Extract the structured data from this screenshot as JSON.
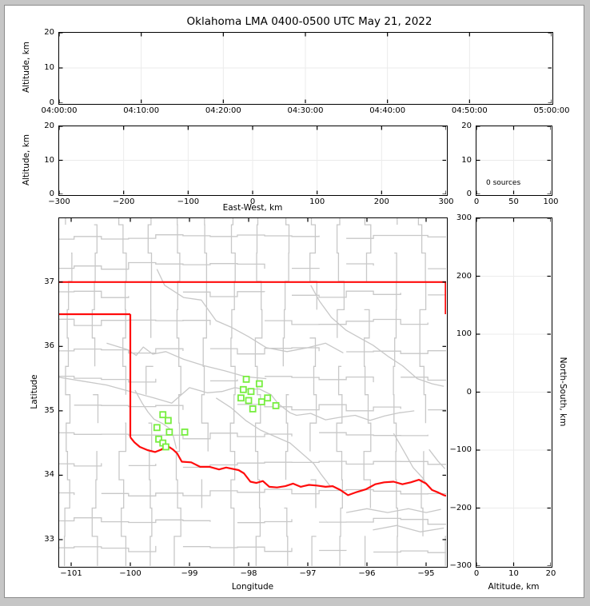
{
  "page": {
    "title": "Oklahoma LMA 0400-0500 UTC May 21, 2022"
  },
  "colors": {
    "figure_background": "#ffffff",
    "window_frame": "#c6c6c6",
    "figure_border": "#8c8c8c",
    "spine": "#000000",
    "grid": "#ebebeb",
    "county": "#c8c8c8",
    "river": "#c8c8c8",
    "state_border": "#ff0c0c",
    "station": "#77ee3f",
    "text": "#000000"
  },
  "chart_data": [
    {
      "id": "time_height",
      "type": "scatter",
      "description": "Altitude vs time panel, no sources plotted",
      "xlabel": "",
      "ylabel": "Altitude, km",
      "xlim": [
        0,
        3600
      ],
      "xticks": [
        {
          "v": 0,
          "t": "04:00:00"
        },
        {
          "v": 600,
          "t": "04:10:00"
        },
        {
          "v": 1200,
          "t": "04:20:00"
        },
        {
          "v": 1800,
          "t": "04:30:00"
        },
        {
          "v": 2400,
          "t": "04:40:00"
        },
        {
          "v": 3000,
          "t": "04:50:00"
        },
        {
          "v": 3600,
          "t": "05:00:00"
        }
      ],
      "ylim": [
        0,
        20
      ],
      "yticks": [
        {
          "v": 0,
          "t": "0"
        },
        {
          "v": 10,
          "t": "10"
        },
        {
          "v": 20,
          "t": "20"
        }
      ],
      "grid": true,
      "points": []
    },
    {
      "id": "ew_height",
      "type": "scatter",
      "description": "Altitude vs East-West distance panel, no sources plotted",
      "xlabel": "East-West, km",
      "ylabel": "Altitude, km",
      "xlim": [
        -300,
        300
      ],
      "xticks": [
        {
          "v": -300,
          "t": "−300"
        },
        {
          "v": -200,
          "t": "−200"
        },
        {
          "v": -100,
          "t": "−100"
        },
        {
          "v": 0,
          "t": "0"
        },
        {
          "v": 100,
          "t": "100"
        },
        {
          "v": 200,
          "t": "200"
        },
        {
          "v": 300,
          "t": "300"
        }
      ],
      "ylim": [
        0,
        20
      ],
      "yticks": [
        {
          "v": 0,
          "t": "0"
        },
        {
          "v": 10,
          "t": "10"
        },
        {
          "v": 20,
          "t": "20"
        }
      ],
      "grid": true,
      "points": []
    },
    {
      "id": "source_histogram",
      "type": "line",
      "description": "Source-count histogram panel",
      "annotation": "0 sources",
      "xlabel": "",
      "ylabel": "",
      "xlim": [
        0,
        100
      ],
      "xticks": [
        {
          "v": 0,
          "t": "0"
        },
        {
          "v": 50,
          "t": "50"
        },
        {
          "v": 100,
          "t": "100"
        }
      ],
      "ylim": [
        0,
        20
      ],
      "yticks": [
        {
          "v": 0,
          "t": "0"
        },
        {
          "v": 10,
          "t": "10"
        },
        {
          "v": 20,
          "t": "20"
        }
      ],
      "grid": true,
      "points": []
    },
    {
      "id": "plan_view",
      "type": "scatter",
      "description": "Plan-view map of Oklahoma with LMA station markers",
      "xlabel": "Longitude",
      "ylabel": "Latitude",
      "xlim": [
        -101.203,
        -94.662
      ],
      "xticks": [
        {
          "v": -101,
          "t": "−101"
        },
        {
          "v": -100,
          "t": "−100"
        },
        {
          "v": -99,
          "t": "−99"
        },
        {
          "v": -98,
          "t": "−98"
        },
        {
          "v": -97,
          "t": "−97"
        },
        {
          "v": -96,
          "t": "−96"
        },
        {
          "v": -95,
          "t": "−95"
        }
      ],
      "ylim": [
        32.59,
        37.99
      ],
      "yticks": [
        {
          "v": 33,
          "t": "33"
        },
        {
          "v": 34,
          "t": "34"
        },
        {
          "v": 35,
          "t": "35"
        },
        {
          "v": 36,
          "t": "36"
        },
        {
          "v": 37,
          "t": "37"
        }
      ],
      "grid": false,
      "stations": [
        [
          -99.45,
          34.94
        ],
        [
          -99.36,
          34.85
        ],
        [
          -99.55,
          34.74
        ],
        [
          -99.34,
          34.67
        ],
        [
          -99.08,
          34.67
        ],
        [
          -99.52,
          34.56
        ],
        [
          -99.45,
          34.5
        ],
        [
          -99.4,
          34.44
        ],
        [
          -98.04,
          35.49
        ],
        [
          -97.82,
          35.42
        ],
        [
          -98.09,
          35.33
        ],
        [
          -97.96,
          35.3
        ],
        [
          -98.13,
          35.2
        ],
        [
          -97.68,
          35.2
        ],
        [
          -98.0,
          35.16
        ],
        [
          -97.78,
          35.14
        ],
        [
          -97.54,
          35.08
        ],
        [
          -97.93,
          35.03
        ]
      ]
    },
    {
      "id": "ns_height",
      "type": "scatter",
      "description": "North-South distance vs altitude panel, no sources plotted",
      "xlabel": "Altitude, km",
      "ylabel": "North-South, km",
      "ylabel_side": "right",
      "xlim": [
        0,
        20
      ],
      "xticks": [
        {
          "v": 0,
          "t": "0"
        },
        {
          "v": 10,
          "t": "10"
        },
        {
          "v": 20,
          "t": "20"
        }
      ],
      "ylim": [
        -300,
        300
      ],
      "yticks": [
        {
          "v": 300,
          "t": "300"
        },
        {
          "v": 200,
          "t": "200"
        },
        {
          "v": 100,
          "t": "100"
        },
        {
          "v": 0,
          "t": "0"
        },
        {
          "v": -100,
          "t": "−100"
        },
        {
          "v": -200,
          "t": "−200"
        },
        {
          "v": -300,
          "t": "−300"
        }
      ],
      "grid": true,
      "points": []
    }
  ],
  "map": {
    "state_border": [
      [
        [
          -101.203,
          37.0
        ],
        [
          -94.662,
          37.0
        ]
      ],
      [
        [
          -101.203,
          36.5
        ],
        [
          -100.0,
          36.5
        ]
      ],
      [
        [
          -100.0,
          36.5
        ],
        [
          -100.0,
          34.59
        ]
      ],
      [
        [
          -94.67,
          37.0
        ],
        [
          -94.67,
          36.5
        ]
      ],
      [
        [
          -100.0,
          34.59
        ],
        [
          -99.93,
          34.51
        ],
        [
          -99.84,
          34.44
        ],
        [
          -99.71,
          34.39
        ],
        [
          -99.58,
          34.36
        ],
        [
          -99.47,
          34.4
        ],
        [
          -99.38,
          34.46
        ],
        [
          -99.28,
          34.4
        ],
        [
          -99.21,
          34.34
        ],
        [
          -99.13,
          34.21
        ],
        [
          -98.97,
          34.2
        ],
        [
          -98.82,
          34.13
        ],
        [
          -98.66,
          34.13
        ],
        [
          -98.5,
          34.09
        ],
        [
          -98.38,
          34.12
        ],
        [
          -98.17,
          34.08
        ],
        [
          -98.08,
          34.03
        ],
        [
          -97.97,
          33.9
        ],
        [
          -97.87,
          33.88
        ],
        [
          -97.76,
          33.91
        ],
        [
          -97.65,
          33.82
        ],
        [
          -97.52,
          33.81
        ],
        [
          -97.38,
          33.83
        ],
        [
          -97.25,
          33.87
        ],
        [
          -97.12,
          33.82
        ],
        [
          -96.98,
          33.85
        ],
        [
          -96.85,
          33.84
        ],
        [
          -96.7,
          33.82
        ],
        [
          -96.58,
          33.83
        ],
        [
          -96.45,
          33.77
        ],
        [
          -96.32,
          33.69
        ],
        [
          -96.17,
          33.74
        ],
        [
          -96.02,
          33.78
        ],
        [
          -95.86,
          33.86
        ],
        [
          -95.71,
          33.89
        ],
        [
          -95.55,
          33.9
        ],
        [
          -95.4,
          33.86
        ],
        [
          -95.26,
          33.89
        ],
        [
          -95.12,
          33.93
        ],
        [
          -95.0,
          33.87
        ],
        [
          -94.9,
          33.77
        ],
        [
          -94.79,
          33.73
        ],
        [
          -94.7,
          33.69
        ],
        [
          -94.66,
          33.68
        ]
      ]
    ],
    "rivers": [
      [
        [
          -99.55,
          37.2
        ],
        [
          -99.42,
          36.95
        ],
        [
          -99.1,
          36.76
        ],
        [
          -98.8,
          36.72
        ],
        [
          -98.55,
          36.4
        ],
        [
          -98.3,
          36.3
        ],
        [
          -98.0,
          36.15
        ],
        [
          -97.7,
          35.98
        ],
        [
          -97.35,
          35.92
        ],
        [
          -97.0,
          35.98
        ],
        [
          -96.7,
          36.05
        ],
        [
          -96.4,
          35.9
        ]
      ],
      [
        [
          -100.4,
          36.05
        ],
        [
          -100.05,
          35.95
        ],
        [
          -99.9,
          35.86
        ],
        [
          -99.78,
          35.99
        ],
        [
          -99.62,
          35.88
        ],
        [
          -99.4,
          35.92
        ],
        [
          -99.1,
          35.8
        ],
        [
          -98.75,
          35.7
        ],
        [
          -98.4,
          35.62
        ],
        [
          -98.05,
          35.53
        ],
        [
          -97.7,
          35.5
        ]
      ],
      [
        [
          -101.2,
          35.52
        ],
        [
          -100.8,
          35.46
        ],
        [
          -100.4,
          35.4
        ],
        [
          -100.0,
          35.3
        ],
        [
          -99.6,
          35.2
        ],
        [
          -99.3,
          35.12
        ],
        [
          -99.0,
          35.36
        ],
        [
          -98.7,
          35.28
        ],
        [
          -98.45,
          35.3
        ],
        [
          -98.23,
          35.36
        ],
        [
          -98.05,
          35.33
        ],
        [
          -97.82,
          35.34
        ],
        [
          -97.62,
          35.25
        ],
        [
          -97.5,
          35.11
        ],
        [
          -97.3,
          34.97
        ],
        [
          -97.19,
          34.93
        ],
        [
          -96.95,
          34.96
        ],
        [
          -96.7,
          34.86
        ],
        [
          -96.45,
          34.9
        ],
        [
          -96.2,
          34.93
        ],
        [
          -95.95,
          34.85
        ],
        [
          -95.7,
          34.92
        ],
        [
          -95.45,
          34.97
        ],
        [
          -95.2,
          35.0
        ]
      ],
      [
        [
          -99.92,
          35.32
        ],
        [
          -99.8,
          35.12
        ],
        [
          -99.7,
          34.98
        ],
        [
          -99.6,
          34.87
        ],
        [
          -99.45,
          34.8
        ],
        [
          -99.33,
          34.72
        ],
        [
          -99.27,
          34.6
        ],
        [
          -99.22,
          34.41
        ]
      ],
      [
        [
          -98.55,
          35.2
        ],
        [
          -98.3,
          35.05
        ],
        [
          -98.05,
          34.85
        ],
        [
          -97.8,
          34.7
        ],
        [
          -97.55,
          34.6
        ],
        [
          -97.3,
          34.5
        ],
        [
          -97.05,
          34.3
        ],
        [
          -96.9,
          34.18
        ],
        [
          -96.78,
          34.02
        ],
        [
          -96.62,
          33.83
        ]
      ],
      [
        [
          -96.95,
          36.95
        ],
        [
          -96.8,
          36.7
        ],
        [
          -96.6,
          36.45
        ],
        [
          -96.35,
          36.25
        ],
        [
          -96.1,
          36.12
        ],
        [
          -95.9,
          36.02
        ],
        [
          -95.65,
          35.85
        ],
        [
          -95.4,
          35.7
        ],
        [
          -95.15,
          35.5
        ],
        [
          -94.9,
          35.42
        ],
        [
          -94.7,
          35.38
        ]
      ],
      [
        [
          -95.55,
          34.65
        ],
        [
          -95.38,
          34.38
        ],
        [
          -95.22,
          34.12
        ],
        [
          -95.05,
          33.95
        ],
        [
          -95.0,
          33.87
        ]
      ],
      [
        [
          -94.95,
          34.4
        ],
        [
          -94.8,
          34.22
        ],
        [
          -94.68,
          34.1
        ]
      ],
      [
        [
          -96.35,
          33.42
        ],
        [
          -96.0,
          33.48
        ],
        [
          -95.65,
          33.42
        ],
        [
          -95.3,
          33.48
        ],
        [
          -95.0,
          33.42
        ],
        [
          -94.75,
          33.47
        ]
      ],
      [
        [
          -95.9,
          33.15
        ],
        [
          -95.5,
          33.22
        ],
        [
          -95.1,
          33.12
        ],
        [
          -94.7,
          33.18
        ]
      ]
    ],
    "counties": {
      "seed": 7,
      "lon_start": -101.05,
      "lon_step": 0.46,
      "lat_start": 32.85,
      "lat_step": 0.44,
      "jitter": 0.13,
      "skip": 0.16
    }
  }
}
